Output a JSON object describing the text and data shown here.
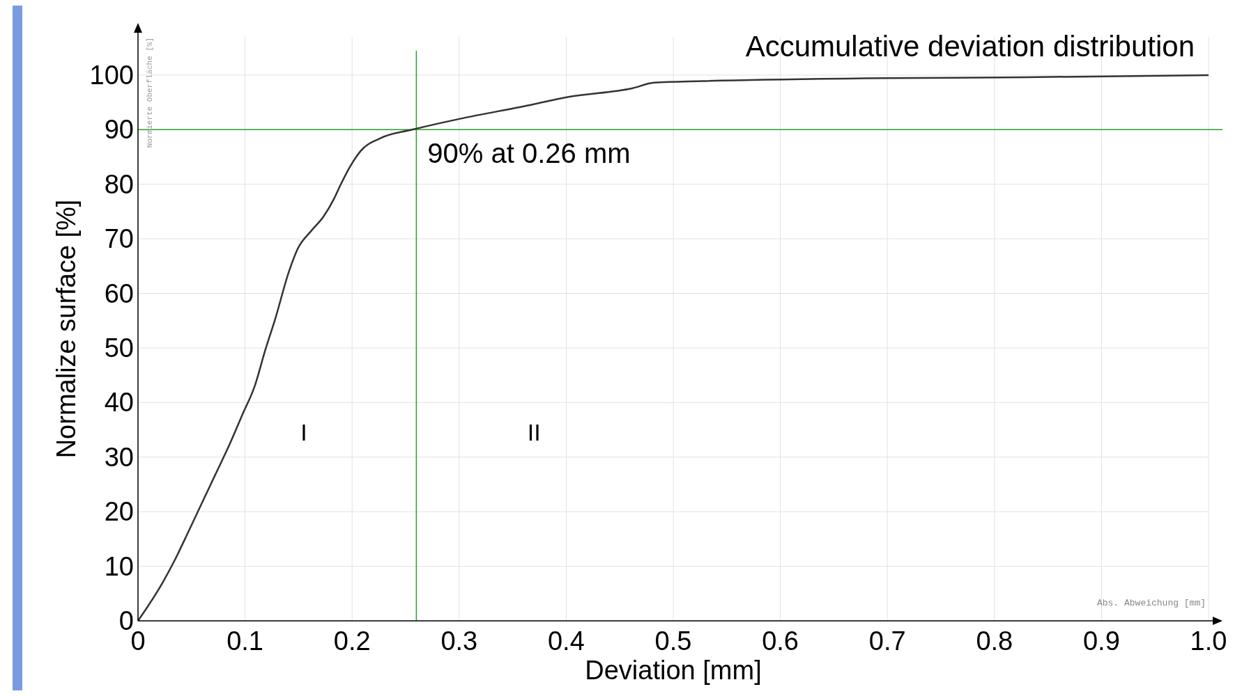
{
  "chart_data": {
    "type": "line",
    "title": "Accumulative deviation distribution",
    "xlabel": "Deviation [mm]",
    "ylabel": "Normalize surface [%]",
    "x": [
      0,
      0.023,
      0.034,
      0.047,
      0.059,
      0.072,
      0.085,
      0.098,
      0.109,
      0.119,
      0.128,
      0.141,
      0.149,
      0.162,
      0.173,
      0.183,
      0.189,
      0.198,
      0.208,
      0.226,
      0.256,
      0.301,
      0.366,
      0.402,
      0.462,
      0.482,
      0.527,
      0.678,
      0.829,
      1.0
    ],
    "series": [
      {
        "color": "#333333",
        "values": [
          0,
          7,
          11,
          16.3,
          21.3,
          26.7,
          32.1,
          38,
          43,
          49.7,
          55.2,
          64,
          68.1,
          71.5,
          74,
          77.3,
          79.8,
          83.2,
          86.1,
          88.4,
          90,
          92,
          94.5,
          96,
          97.6,
          98.6,
          98.9,
          99.4,
          99.6,
          100
        ]
      }
    ],
    "xlim": [
      0,
      1.0
    ],
    "ylim": [
      0,
      107
    ],
    "xticks": [
      0,
      0.1,
      0.2,
      0.3,
      0.4,
      0.5,
      0.6,
      0.7,
      0.8,
      0.9,
      {
        "value": 1,
        "label": "1.0"
      }
    ],
    "yticks": [
      0,
      10,
      20,
      30,
      40,
      50,
      60,
      70,
      80,
      90,
      100
    ],
    "grid": true,
    "marker": "none",
    "line_style": "solid",
    "ref_lines": [
      {
        "axis": "x",
        "value": 0.26,
        "color": "#2ca02c"
      },
      {
        "axis": "y",
        "value": 90,
        "color": "#2ca02c"
      }
    ],
    "annotations": [
      {
        "text": "90% at 0.26 mm",
        "x": 0.26,
        "y": 90
      },
      "I",
      "II",
      "Normierte Oberfläche [%]",
      "Abs. Abweichung [mm]"
    ]
  }
}
